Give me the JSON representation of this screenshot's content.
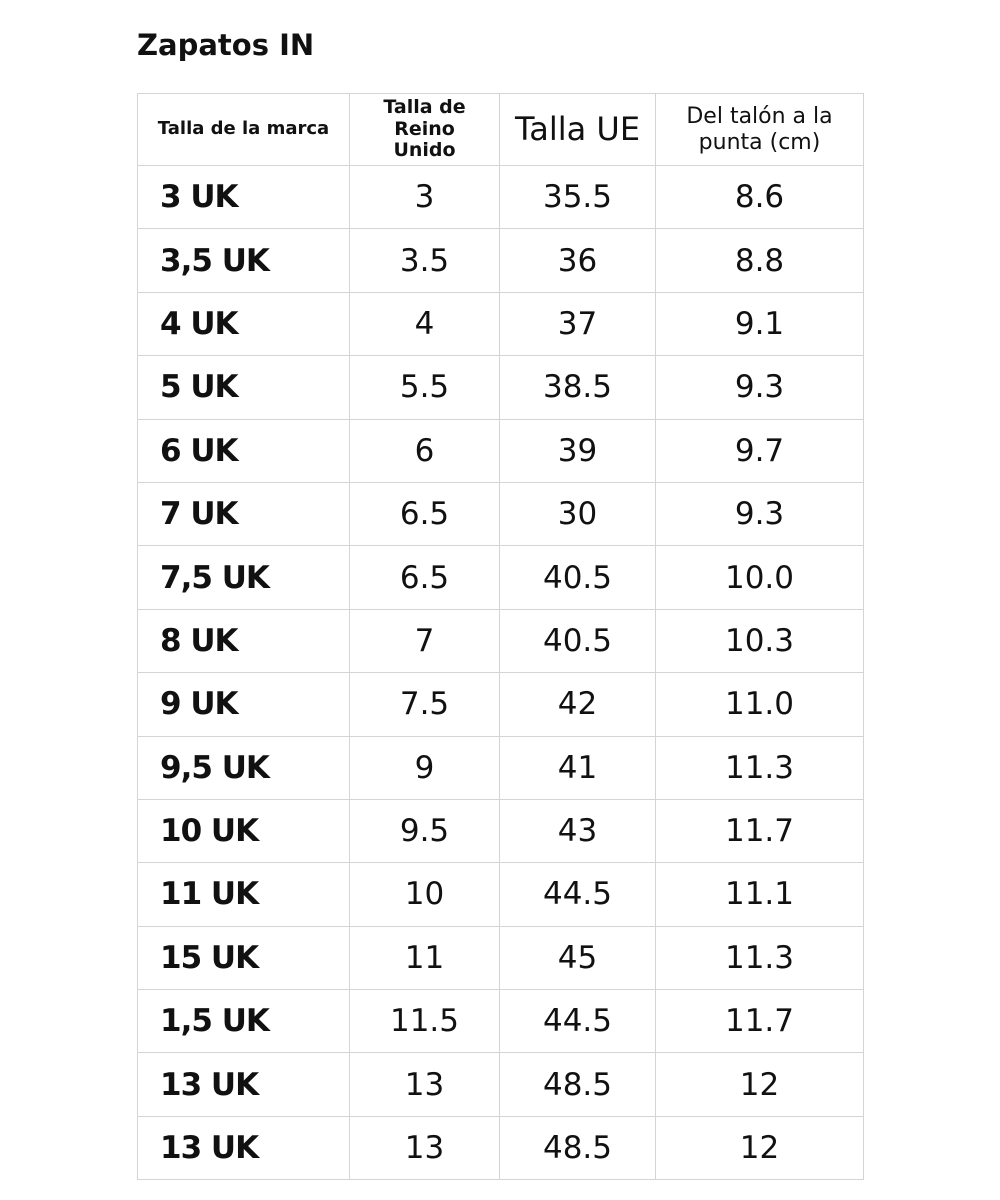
{
  "header": {
    "title": "Zapatos IN"
  },
  "table": {
    "columns": [
      "Talla de la marca",
      "Talla de Reino Unido",
      "Talla UE",
      "Del talón a la punta (cm)"
    ],
    "rows": [
      [
        "3 UK",
        "3",
        "35.5",
        "8.6"
      ],
      [
        "3,5 UK",
        "3.5",
        "36",
        "8.8"
      ],
      [
        "4 UK",
        "4",
        "37",
        "9.1"
      ],
      [
        "5 UK",
        "5.5",
        "38.5",
        "9.3"
      ],
      [
        "6 UK",
        "6",
        "39",
        "9.7"
      ],
      [
        "7 UK",
        "6.5",
        "30",
        "9.3"
      ],
      [
        "7,5 UK",
        "6.5",
        "40.5",
        "10.0"
      ],
      [
        "8 UK",
        "7",
        "40.5",
        "10.3"
      ],
      [
        "9 UK",
        "7.5",
        "42",
        "11.0"
      ],
      [
        "9,5 UK",
        "9",
        "41",
        "11.3"
      ],
      [
        "10 UK",
        "9.5",
        "43",
        "11.7"
      ],
      [
        "11 UK",
        "10",
        "44.5",
        "11.1"
      ],
      [
        "15 UK",
        "11",
        "45",
        "11.3"
      ],
      [
        "1,5 UK",
        "11.5",
        "44.5",
        "11.7"
      ],
      [
        "13 UK",
        "13",
        "48.5",
        "12"
      ],
      [
        "13 UK",
        "13",
        "48.5",
        "12"
      ]
    ]
  }
}
